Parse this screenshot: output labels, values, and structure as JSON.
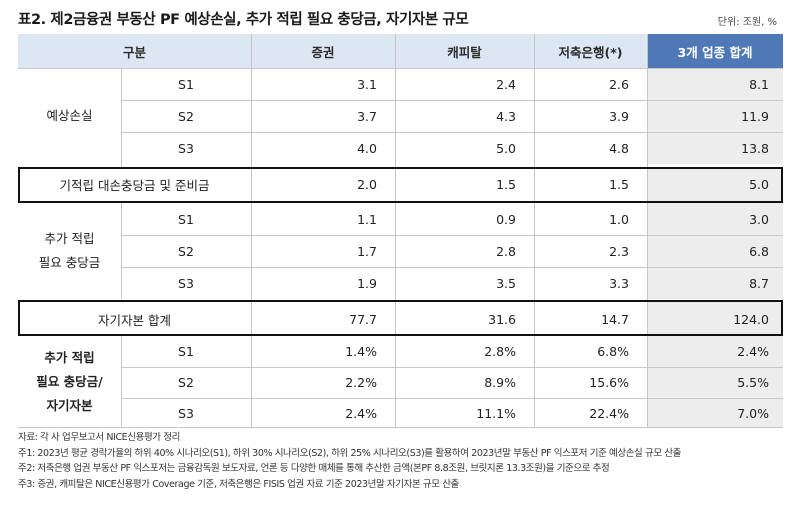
{
  "title": "표2. 제2금융권 부동산 PF 예상손실, 추가 적립 필요 충당금, 자기자본 규모",
  "unit": "단위: 조원, %",
  "header": {
    "category": "구분",
    "securities": "증권",
    "capital": "캐피탈",
    "savings_bank": "저축은행(*)",
    "total": "3개 업종 합계"
  },
  "expected_loss": {
    "label": "예상손실",
    "rows": [
      {
        "scenario": "S1",
        "securities": "3.1",
        "capital": "2.4",
        "savings_bank": "2.6",
        "total": "8.1"
      },
      {
        "scenario": "S2",
        "securities": "3.7",
        "capital": "4.3",
        "savings_bank": "3.9",
        "total": "11.9"
      },
      {
        "scenario": "S3",
        "securities": "4.0",
        "capital": "5.0",
        "savings_bank": "4.8",
        "total": "13.8"
      }
    ]
  },
  "reserves": {
    "label": "기적립 대손충당금 및 준비금",
    "securities": "2.0",
    "capital": "1.5",
    "savings_bank": "1.5",
    "total": "5.0"
  },
  "additional_provisions": {
    "label_line1": "추가 적립",
    "label_line2": "필요 충당금",
    "rows": [
      {
        "scenario": "S1",
        "securities": "1.1",
        "capital": "0.9",
        "savings_bank": "1.0",
        "total": "3.0"
      },
      {
        "scenario": "S2",
        "securities": "1.7",
        "capital": "2.8",
        "savings_bank": "2.3",
        "total": "6.8"
      },
      {
        "scenario": "S3",
        "securities": "1.9",
        "capital": "3.5",
        "savings_bank": "3.3",
        "total": "8.7"
      }
    ]
  },
  "equity": {
    "label": "자기자본 합계",
    "securities": "77.7",
    "capital": "31.6",
    "savings_bank": "14.7",
    "total": "124.0"
  },
  "ratio": {
    "label_line1": "추가 적립",
    "label_line2": "필요 충당금/",
    "label_line3": "자기자본",
    "rows": [
      {
        "scenario": "S1",
        "securities": "1.4%",
        "capital": "2.8%",
        "savings_bank": "6.8%",
        "total": "2.4%"
      },
      {
        "scenario": "S2",
        "securities": "2.2%",
        "capital": "8.9%",
        "savings_bank": "15.6%",
        "total": "5.5%"
      },
      {
        "scenario": "S3",
        "securities": "2.4%",
        "capital": "11.1%",
        "savings_bank": "22.4%",
        "total": "7.0%"
      }
    ]
  },
  "notes": [
    "자료: 각 사 업무보고서 NICE신용평가 정리",
    "주1: 2023년 평균 경락가율의 하위 40% 시나리오(S1), 하위 30% 시나리오(S2), 하위 25% 시나리오(S3)를 활용하여 2023년말 부동산 PF 익스포저 기준 예상손실 규모 산출",
    "주2: 저축은행 업권 부동산 PF 익스포저는 금융감독원 보도자료, 언론 등 다양한 매체를 통해 추산한 금액(본PF 8.8조원, 브릿지론 13.3조원)을 기준으로 추정",
    "주3: 증권, 캐피탈은 NICE신용평가 Coverage 기준, 저축은행은 FISIS 업권 자료 기준 2023년말 자기자본 규모 산출"
  ]
}
